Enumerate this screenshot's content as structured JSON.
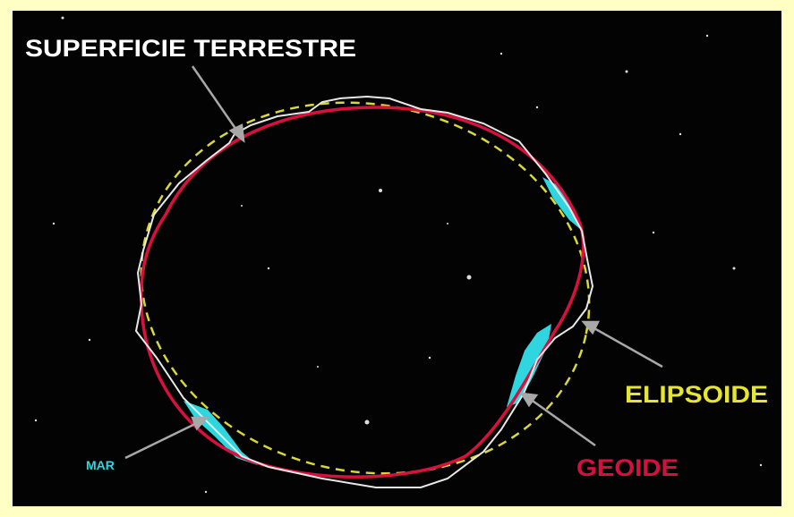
{
  "labels": {
    "surface": "SUPERFICIE TERRESTRE",
    "ellipsoid": "ELIPSOIDE",
    "geoid": "GEOIDE",
    "sea": "MAR"
  }
}
